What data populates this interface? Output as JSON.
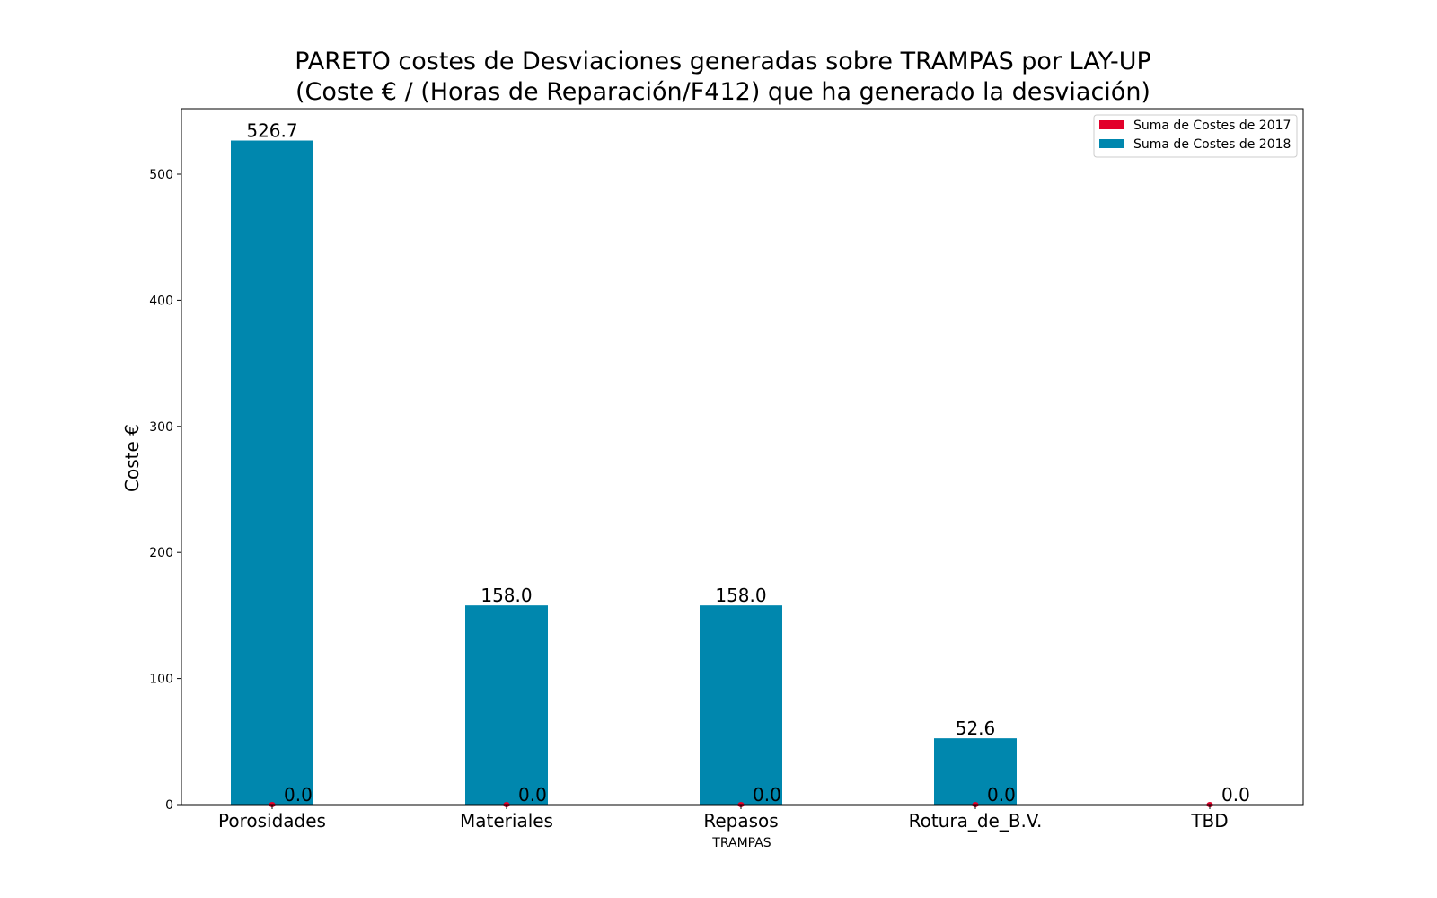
{
  "chart_data": {
    "type": "bar",
    "title": "PARETO costes de Desviaciones  generadas  sobre TRAMPAS por LAY-UP",
    "subtitle": "(Coste € / (Horas de Reparación/F412) que ha generado la desviación)",
    "xlabel": "TRAMPAS",
    "ylabel": "Coste €",
    "categories": [
      "Porosidades",
      "Materiales",
      "Repasos",
      "Rotura_de_B.V.",
      "TBD"
    ],
    "series": [
      {
        "name": "Suma de Costes de 2017",
        "color": "#e2002a",
        "values": [
          0.0,
          0.0,
          0.0,
          0.0,
          0.0
        ],
        "labels": [
          "0.0",
          "0.0",
          "0.0",
          "0.0",
          "0.0"
        ]
      },
      {
        "name": "Suma de Costes de 2018",
        "color": "#0087ae",
        "values": [
          526.7,
          158.0,
          158.0,
          52.6,
          null
        ],
        "labels": [
          "526.7",
          "158.0",
          "158.0",
          "52.6",
          null
        ]
      }
    ],
    "ylim": [
      0,
      552
    ],
    "yticks": [
      0,
      100,
      200,
      300,
      400,
      500
    ],
    "grid": false,
    "legend_position": "top-right"
  }
}
